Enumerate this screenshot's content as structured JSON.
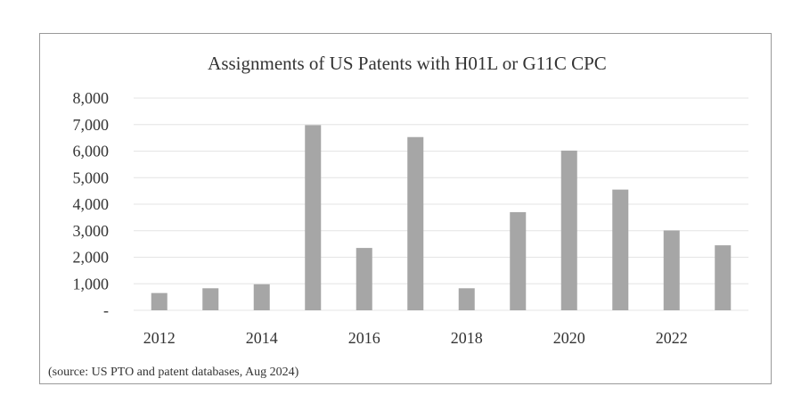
{
  "chart_data": {
    "type": "bar",
    "title": "Assignments of US Patents with H01L  or G11C  CPC",
    "xlabel": "",
    "ylabel": "",
    "categories": [
      "2012",
      "2013",
      "2014",
      "2015",
      "2016",
      "2017",
      "2018",
      "2019",
      "2020",
      "2021",
      "2022",
      "2023"
    ],
    "values": [
      650,
      830,
      980,
      6980,
      2350,
      6530,
      830,
      3700,
      6020,
      4550,
      3010,
      2450
    ],
    "ylim": [
      0,
      8000
    ],
    "yticks": [
      0,
      1000,
      2000,
      3000,
      4000,
      5000,
      6000,
      7000,
      8000
    ],
    "ytick_labels": [
      "-",
      "1,000",
      "2,000",
      "3,000",
      "4,000",
      "5,000",
      "6,000",
      "7,000",
      "8,000"
    ],
    "xtick_labels": [
      "2012",
      "",
      "2014",
      "",
      "2016",
      "",
      "2018",
      "",
      "2020",
      "",
      "2022",
      ""
    ],
    "grid": true,
    "legend": "none",
    "bar_color": "#a6a6a6",
    "grid_color": "#e4e4e4",
    "source_note": "(source: US PTO and patent databases, Aug 2024)"
  }
}
